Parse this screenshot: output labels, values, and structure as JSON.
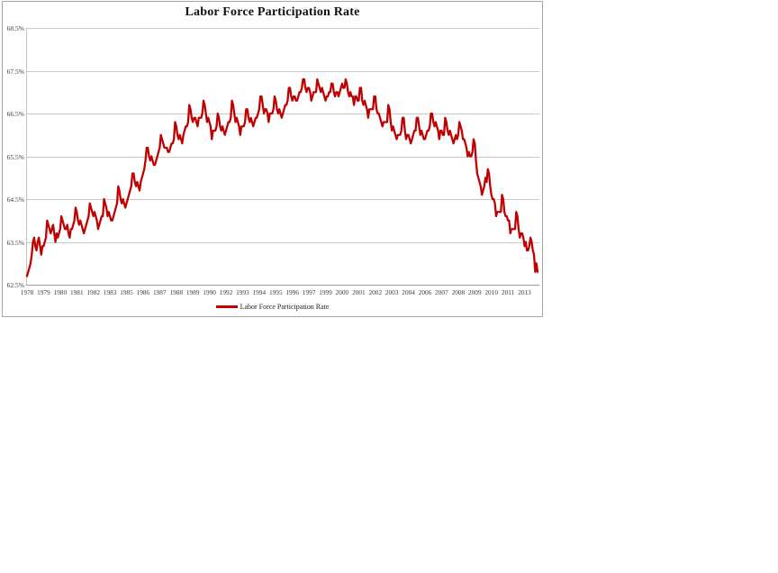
{
  "window": {
    "background": "#ffffff"
  },
  "legend": {
    "label": "Labor Force Participation Rate"
  },
  "colors": {
    "line": "#c00000",
    "grid": "#c9c9c9",
    "axis": "#9b9b9b",
    "frame_border": "#a6a6a6",
    "tick_text": "#3a3a3a",
    "title_text": "#111111"
  },
  "chart_data": {
    "type": "line",
    "title": "Labor Force Participation Rate",
    "xlabel": "",
    "ylabel": "",
    "x_start": "1978-01",
    "x_frequency": "monthly",
    "x_tick_every_n_months": 14,
    "x_tick_labels": [
      "1978",
      "1979",
      "1980",
      "1981",
      "1982",
      "1983",
      "1985",
      "1986",
      "1987",
      "1988",
      "1989",
      "1990",
      "1992",
      "1993",
      "1994",
      "1995",
      "1996",
      "1997",
      "1999",
      "2000",
      "2001",
      "2002",
      "2003",
      "2004",
      "2006",
      "2007",
      "2008",
      "2009",
      "2010",
      "2011",
      "2013"
    ],
    "y_tick_labels": [
      "62.5%",
      "63.5%",
      "64.5%",
      "65.5%",
      "66.5%",
      "67.5%",
      "68.5%"
    ],
    "ylim": [
      62.5,
      68.5
    ],
    "grid": "horizontal",
    "legend_position": "bottom-center",
    "series": [
      {
        "name": "Labor Force Participation Rate",
        "color": "#c00000",
        "values": [
          62.7,
          62.8,
          62.9,
          63.0,
          63.2,
          63.5,
          63.6,
          63.4,
          63.3,
          63.5,
          63.6,
          63.4,
          63.2,
          63.4,
          63.4,
          63.5,
          63.6,
          64.0,
          63.9,
          63.8,
          63.7,
          63.8,
          63.9,
          63.7,
          63.5,
          63.7,
          63.6,
          63.7,
          63.8,
          64.1,
          64.0,
          63.9,
          63.8,
          63.8,
          63.9,
          63.7,
          63.6,
          63.8,
          63.8,
          63.9,
          64.0,
          64.3,
          64.2,
          64.0,
          63.9,
          64.0,
          63.9,
          63.8,
          63.7,
          63.8,
          63.9,
          64.0,
          64.1,
          64.4,
          64.3,
          64.2,
          64.1,
          64.2,
          64.1,
          64.0,
          63.8,
          63.9,
          64.0,
          64.1,
          64.1,
          64.5,
          64.4,
          64.3,
          64.1,
          64.2,
          64.1,
          64.0,
          64.0,
          64.1,
          64.2,
          64.3,
          64.4,
          64.8,
          64.7,
          64.5,
          64.4,
          64.5,
          64.4,
          64.3,
          64.4,
          64.5,
          64.6,
          64.7,
          64.8,
          65.1,
          65.1,
          64.9,
          64.8,
          64.9,
          64.8,
          64.7,
          64.9,
          65.0,
          65.1,
          65.2,
          65.4,
          65.7,
          65.7,
          65.5,
          65.4,
          65.5,
          65.4,
          65.3,
          65.3,
          65.4,
          65.5,
          65.6,
          65.7,
          66.0,
          65.9,
          65.8,
          65.7,
          65.7,
          65.7,
          65.6,
          65.6,
          65.7,
          65.8,
          65.8,
          65.9,
          66.3,
          66.2,
          66.0,
          65.9,
          66.0,
          65.9,
          65.8,
          66.0,
          66.1,
          66.2,
          66.2,
          66.3,
          66.7,
          66.6,
          66.4,
          66.3,
          66.4,
          66.4,
          66.3,
          66.2,
          66.4,
          66.4,
          66.4,
          66.5,
          66.8,
          66.7,
          66.5,
          66.3,
          66.4,
          66.3,
          66.2,
          65.9,
          66.1,
          66.1,
          66.1,
          66.2,
          66.5,
          66.4,
          66.2,
          66.1,
          66.2,
          66.1,
          66.0,
          66.1,
          66.2,
          66.3,
          66.3,
          66.4,
          66.8,
          66.7,
          66.5,
          66.3,
          66.4,
          66.3,
          66.2,
          66.0,
          66.2,
          66.2,
          66.2,
          66.3,
          66.6,
          66.6,
          66.4,
          66.3,
          66.4,
          66.3,
          66.2,
          66.3,
          66.4,
          66.4,
          66.5,
          66.6,
          66.9,
          66.9,
          66.7,
          66.5,
          66.6,
          66.6,
          66.5,
          66.3,
          66.5,
          66.5,
          66.5,
          66.6,
          66.9,
          66.8,
          66.6,
          66.5,
          66.6,
          66.5,
          66.4,
          66.5,
          66.6,
          66.7,
          66.7,
          66.8,
          67.1,
          67.1,
          66.9,
          66.8,
          66.9,
          66.9,
          66.8,
          66.8,
          66.9,
          67.0,
          67.0,
          67.1,
          67.3,
          67.3,
          67.1,
          67.0,
          67.1,
          67.1,
          67.0,
          66.8,
          66.9,
          67.0,
          67.0,
          67.0,
          67.3,
          67.2,
          67.1,
          67.0,
          67.1,
          67.0,
          66.9,
          66.8,
          66.9,
          66.9,
          67.0,
          67.0,
          67.2,
          67.2,
          67.0,
          66.9,
          67.0,
          67.0,
          66.9,
          67.0,
          67.1,
          67.2,
          67.1,
          67.1,
          67.3,
          67.2,
          67.0,
          66.9,
          67.0,
          66.9,
          66.9,
          66.7,
          66.9,
          66.9,
          66.8,
          66.8,
          67.1,
          67.1,
          66.8,
          66.7,
          66.8,
          66.7,
          66.6,
          66.4,
          66.6,
          66.6,
          66.6,
          66.6,
          66.9,
          66.9,
          66.6,
          66.5,
          66.5,
          66.4,
          66.3,
          66.2,
          66.3,
          66.3,
          66.3,
          66.3,
          66.7,
          66.6,
          66.3,
          66.1,
          66.2,
          66.1,
          66.0,
          65.9,
          66.0,
          66.0,
          66.0,
          66.1,
          66.4,
          66.4,
          66.1,
          65.9,
          66.0,
          66.0,
          65.9,
          65.8,
          65.9,
          66.0,
          66.1,
          66.1,
          66.4,
          66.4,
          66.2,
          66.0,
          66.1,
          66.0,
          65.9,
          65.9,
          66.0,
          66.1,
          66.1,
          66.2,
          66.5,
          66.5,
          66.3,
          66.2,
          66.3,
          66.2,
          66.1,
          65.9,
          66.1,
          66.1,
          66.0,
          66.0,
          66.4,
          66.3,
          66.1,
          66.0,
          66.1,
          66.0,
          65.9,
          65.8,
          65.9,
          66.0,
          65.9,
          66.0,
          66.3,
          66.2,
          66.1,
          65.9,
          65.9,
          65.8,
          65.7,
          65.5,
          65.6,
          65.5,
          65.5,
          65.6,
          65.9,
          65.8,
          65.4,
          65.1,
          65.0,
          64.9,
          64.8,
          64.6,
          64.7,
          64.8,
          65.0,
          64.9,
          65.2,
          65.1,
          64.8,
          64.6,
          64.5,
          64.5,
          64.4,
          64.1,
          64.2,
          64.2,
          64.2,
          64.2,
          64.6,
          64.5,
          64.2,
          64.1,
          64.1,
          64.0,
          64.0,
          63.7,
          63.8,
          63.8,
          63.8,
          63.8,
          64.2,
          64.1,
          63.8,
          63.6,
          63.7,
          63.7,
          63.6,
          63.4,
          63.5,
          63.3,
          63.3,
          63.4,
          63.6,
          63.5,
          63.3,
          63.2,
          62.8,
          63.0,
          62.8
        ]
      }
    ]
  }
}
